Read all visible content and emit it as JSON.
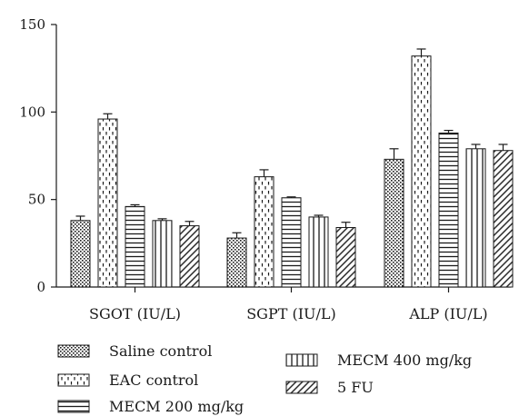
{
  "chart_data": {
    "type": "bar",
    "title": "",
    "xlabel": "",
    "ylabel": "",
    "ylim": [
      0,
      150
    ],
    "yticks": [
      0,
      50,
      100,
      150
    ],
    "grid": false,
    "legend_position": "bottom",
    "categories": [
      "SGOT (IU/L)",
      "SGPT (IU/L)",
      "ALP (IU/L)"
    ],
    "series": [
      {
        "name": "Saline control",
        "pattern": "dots",
        "values": [
          38,
          28,
          73
        ],
        "errors": [
          2.5,
          3,
          6
        ]
      },
      {
        "name": "EAC control",
        "pattern": "dashes",
        "values": [
          96,
          63,
          132
        ],
        "errors": [
          3,
          4,
          4
        ]
      },
      {
        "name": "MECM 200 mg/kg",
        "pattern": "horizontal-lines",
        "values": [
          46,
          51,
          88
        ],
        "errors": [
          1,
          0.5,
          1.5
        ]
      },
      {
        "name": "MECM 400 mg/kg",
        "pattern": "vertical-lines",
        "values": [
          38,
          40,
          79
        ],
        "errors": [
          1,
          1,
          2.5
        ]
      },
      {
        "name": "5 FU",
        "pattern": "diagonal-lines",
        "values": [
          35,
          34,
          78
        ],
        "errors": [
          2.5,
          3,
          3.5
        ]
      }
    ],
    "colors": {
      "stroke": "#1a1a1a",
      "background": "#ffffff"
    }
  }
}
